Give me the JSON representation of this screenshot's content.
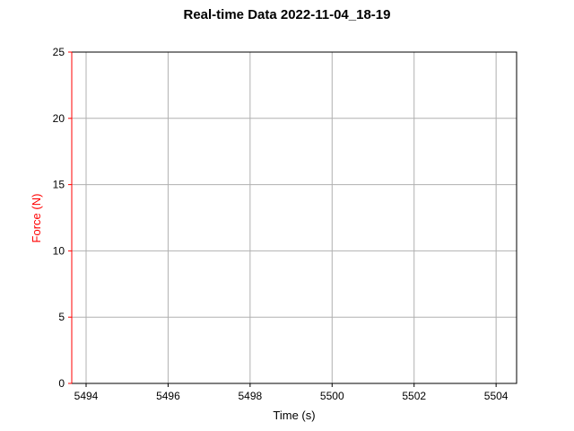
{
  "chart_data": {
    "type": "line",
    "title": "Real-time Data 2022-11-04_18-19",
    "xlabel": "Time (s)",
    "ylabel": "Force (N)",
    "xlim": [
      5493.65,
      5504.5
    ],
    "ylim": [
      0,
      25
    ],
    "x_ticks": [
      5494,
      5496,
      5498,
      5500,
      5502,
      5504
    ],
    "y_ticks": [
      0,
      5,
      10,
      15,
      20,
      25
    ],
    "grid": true,
    "series": [],
    "colors": {
      "ylabel": "#ff0000",
      "y_axis_spine": "#ff0000",
      "grid": "#b0b0b0",
      "frame": "#000000"
    }
  }
}
